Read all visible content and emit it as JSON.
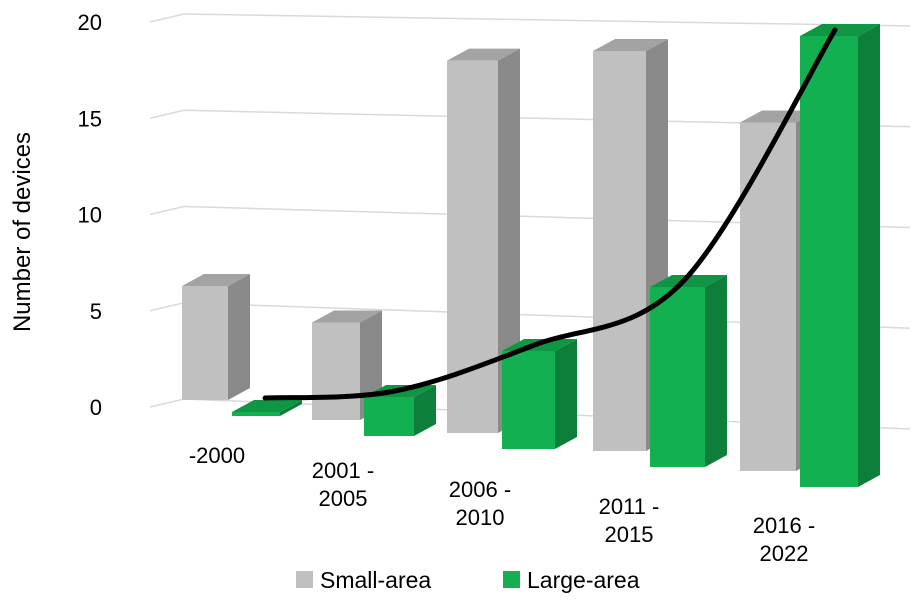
{
  "chart_data": {
    "type": "bar",
    "style": "3d-clustered-column-with-trendline",
    "title": "",
    "xlabel": "",
    "ylabel": "Number of devices",
    "ylim": [
      0,
      20
    ],
    "yticks": [
      "0",
      "5",
      "10",
      "15",
      "20"
    ],
    "grid": true,
    "legend": "bottom",
    "categories": [
      [
        "-2000"
      ],
      [
        "2001 -",
        "2005"
      ],
      [
        "2006 -",
        "2010"
      ],
      [
        "2011 -",
        "2015"
      ],
      [
        "2016 -",
        "2022"
      ]
    ],
    "series": [
      {
        "name": "Small-area",
        "values": [
          6,
          5,
          19,
          20,
          17
        ],
        "color": "#c0c0c0"
      },
      {
        "name": "Large-area",
        "values": [
          0,
          2,
          5,
          9,
          22
        ],
        "color": "#12b050"
      }
    ],
    "trendline": {
      "color": "#000000",
      "type": "smooth-curve"
    }
  }
}
